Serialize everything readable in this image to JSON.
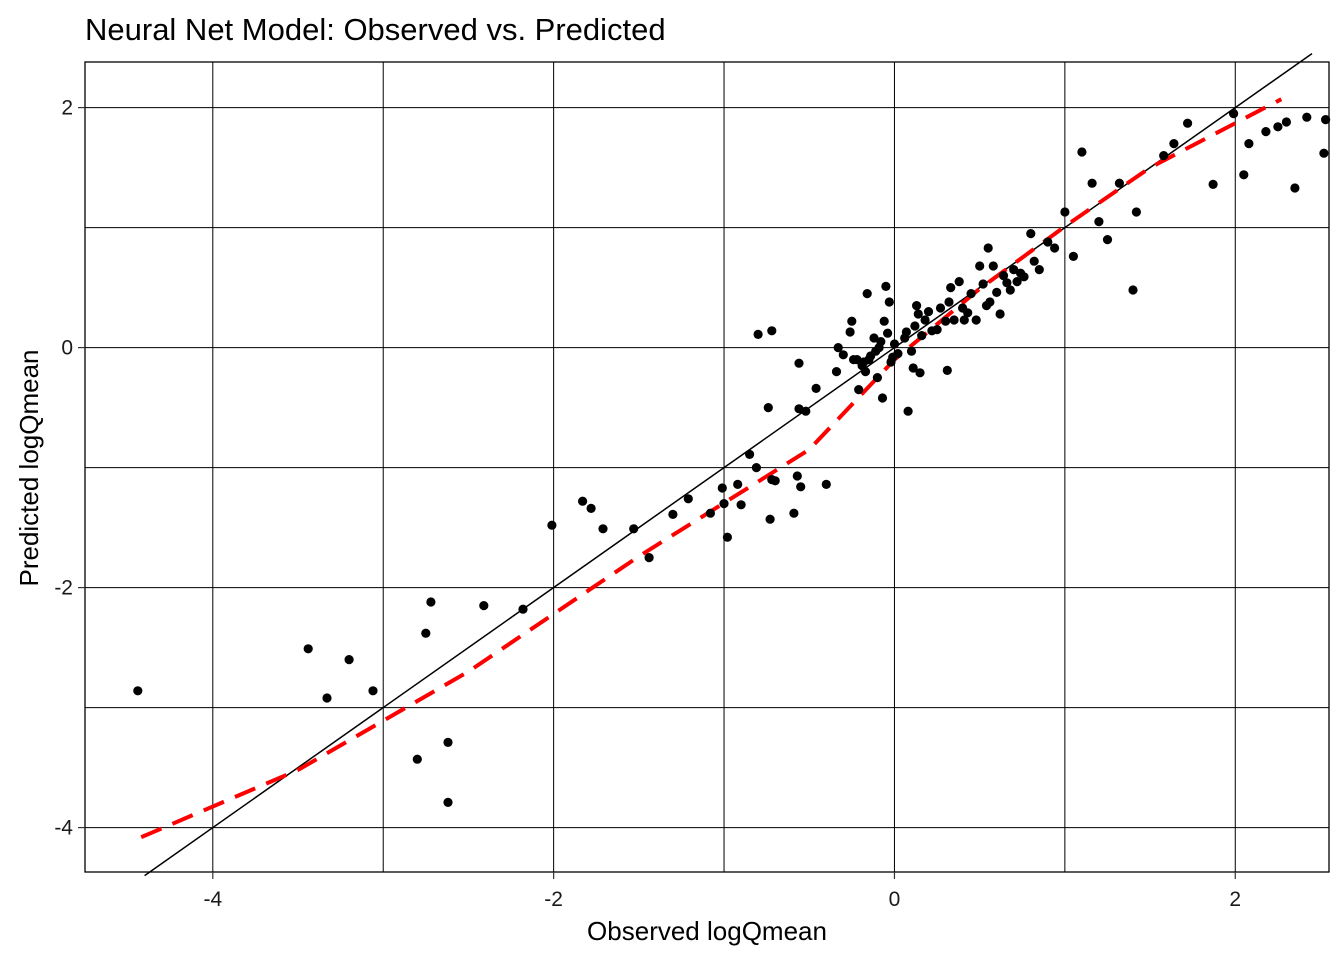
{
  "chart_data": {
    "type": "scatter",
    "title": "Neural Net Model: Observed vs. Predicted",
    "xlabel": "Observed logQmean",
    "ylabel": "Predicted logQmean",
    "xlim": [
      -4.75,
      2.55
    ],
    "ylim": [
      -4.37,
      2.38
    ],
    "x_ticks": [
      -4,
      -2,
      0,
      2
    ],
    "y_ticks": [
      -4,
      -2,
      0,
      2
    ],
    "x_tick_labels": [
      "-4",
      "-2",
      "0",
      "2"
    ],
    "y_tick_labels": [
      "-4",
      "-2",
      "0",
      "2"
    ],
    "grid": true,
    "legend": "none",
    "colors": {
      "points": "#000000",
      "identity_line": "#000000",
      "fit_line": "#ff0000",
      "grid": "#000000",
      "background": "#ffffff"
    },
    "series": [
      {
        "type": "scatter",
        "points": [
          [
            -4.44,
            -2.86
          ],
          [
            -3.44,
            -2.51
          ],
          [
            -3.33,
            -2.92
          ],
          [
            -3.2,
            -2.6
          ],
          [
            -3.06,
            -2.86
          ],
          [
            -2.8,
            -3.43
          ],
          [
            -2.75,
            -2.38
          ],
          [
            -2.72,
            -2.12
          ],
          [
            -2.62,
            -3.29
          ],
          [
            -2.62,
            -3.79
          ],
          [
            -2.41,
            -2.15
          ],
          [
            -2.18,
            -2.18
          ],
          [
            -2.01,
            -1.48
          ],
          [
            -1.83,
            -1.28
          ],
          [
            -1.78,
            -1.34
          ],
          [
            -1.71,
            -1.51
          ],
          [
            -1.53,
            -1.51
          ],
          [
            -1.44,
            -1.75
          ],
          [
            -1.3,
            -1.39
          ],
          [
            -1.21,
            -1.26
          ],
          [
            -1.08,
            -1.38
          ],
          [
            -1.01,
            -1.17
          ],
          [
            -1.0,
            -1.3
          ],
          [
            -0.98,
            -1.58
          ],
          [
            -0.92,
            -1.14
          ],
          [
            -0.9,
            -1.31
          ],
          [
            -0.85,
            -0.89
          ],
          [
            -0.81,
            -1.0
          ],
          [
            -0.8,
            0.11
          ],
          [
            -0.74,
            -0.5
          ],
          [
            -0.72,
            0.14
          ],
          [
            -0.73,
            -1.43
          ],
          [
            -0.72,
            -1.1
          ],
          [
            -0.7,
            -1.11
          ],
          [
            -0.59,
            -1.38
          ],
          [
            -0.57,
            -1.07
          ],
          [
            -0.56,
            -0.13
          ],
          [
            -0.56,
            -0.51
          ],
          [
            -0.55,
            -1.16
          ],
          [
            -0.52,
            -0.53
          ],
          [
            -0.46,
            -0.34
          ],
          [
            -0.4,
            -1.14
          ],
          [
            -0.34,
            -0.2
          ],
          [
            -0.33,
            0.0
          ],
          [
            -0.3,
            -0.06
          ],
          [
            -0.26,
            0.13
          ],
          [
            -0.25,
            0.22
          ],
          [
            -0.24,
            -0.1
          ],
          [
            -0.22,
            -0.1
          ],
          [
            -0.21,
            -0.35
          ],
          [
            -0.19,
            -0.15
          ],
          [
            -0.18,
            -0.12
          ],
          [
            -0.17,
            -0.2
          ],
          [
            -0.16,
            0.45
          ],
          [
            -0.15,
            -0.1
          ],
          [
            -0.14,
            -0.07
          ],
          [
            -0.12,
            0.08
          ],
          [
            -0.11,
            -0.03
          ],
          [
            -0.1,
            -0.25
          ],
          [
            -0.09,
            0.0
          ],
          [
            -0.08,
            0.05
          ],
          [
            -0.07,
            -0.42
          ],
          [
            -0.06,
            0.22
          ],
          [
            -0.05,
            0.51
          ],
          [
            -0.04,
            0.12
          ],
          [
            -0.03,
            0.38
          ],
          [
            -0.02,
            -0.12
          ],
          [
            -0.01,
            -0.08
          ],
          [
            0.0,
            0.03
          ],
          [
            0.02,
            -0.05
          ],
          [
            0.06,
            0.08
          ],
          [
            0.07,
            0.13
          ],
          [
            0.08,
            -0.53
          ],
          [
            0.1,
            -0.03
          ],
          [
            0.11,
            -0.17
          ],
          [
            0.12,
            0.18
          ],
          [
            0.13,
            0.35
          ],
          [
            0.14,
            0.28
          ],
          [
            0.15,
            -0.21
          ],
          [
            0.16,
            0.1
          ],
          [
            0.18,
            0.23
          ],
          [
            0.2,
            0.3
          ],
          [
            0.22,
            0.14
          ],
          [
            0.25,
            0.15
          ],
          [
            0.27,
            0.33
          ],
          [
            0.3,
            0.22
          ],
          [
            0.31,
            -0.19
          ],
          [
            0.32,
            0.38
          ],
          [
            0.33,
            0.5
          ],
          [
            0.35,
            0.23
          ],
          [
            0.38,
            0.55
          ],
          [
            0.4,
            0.33
          ],
          [
            0.41,
            0.23
          ],
          [
            0.43,
            0.29
          ],
          [
            0.45,
            0.45
          ],
          [
            0.48,
            0.23
          ],
          [
            0.5,
            0.68
          ],
          [
            0.52,
            0.53
          ],
          [
            0.54,
            0.35
          ],
          [
            0.55,
            0.83
          ],
          [
            0.56,
            0.38
          ],
          [
            0.58,
            0.68
          ],
          [
            0.6,
            0.46
          ],
          [
            0.62,
            0.28
          ],
          [
            0.64,
            0.6
          ],
          [
            0.66,
            0.54
          ],
          [
            0.68,
            0.48
          ],
          [
            0.7,
            0.65
          ],
          [
            0.72,
            0.55
          ],
          [
            0.74,
            0.62
          ],
          [
            0.76,
            0.59
          ],
          [
            0.8,
            0.95
          ],
          [
            0.82,
            0.72
          ],
          [
            0.85,
            0.65
          ],
          [
            0.9,
            0.88
          ],
          [
            0.94,
            0.83
          ],
          [
            1.0,
            1.13
          ],
          [
            1.05,
            0.76
          ],
          [
            1.1,
            1.63
          ],
          [
            1.16,
            1.37
          ],
          [
            1.2,
            1.05
          ],
          [
            1.25,
            0.9
          ],
          [
            1.32,
            1.37
          ],
          [
            1.4,
            0.48
          ],
          [
            1.42,
            1.13
          ],
          [
            1.58,
            1.6
          ],
          [
            1.64,
            1.7
          ],
          [
            1.72,
            1.87
          ],
          [
            1.87,
            1.36
          ],
          [
            1.99,
            1.95
          ],
          [
            2.05,
            1.44
          ],
          [
            2.08,
            1.7
          ],
          [
            2.18,
            1.8
          ],
          [
            2.25,
            1.84
          ],
          [
            2.3,
            1.88
          ],
          [
            2.35,
            1.33
          ],
          [
            2.42,
            1.92
          ],
          [
            2.53,
            1.9
          ],
          [
            2.52,
            1.62
          ]
        ]
      },
      {
        "type": "line",
        "style": "solid",
        "color": "#000000",
        "x": [
          -4.4,
          2.45
        ],
        "y": [
          -4.4,
          2.45
        ]
      },
      {
        "type": "line",
        "style": "dashed",
        "color": "#ff0000",
        "x": [
          -4.42,
          -3.5,
          -2.5,
          -1.5,
          -0.5,
          0.0,
          0.5,
          1.0,
          1.5,
          2.27
        ],
        "y": [
          -4.08,
          -3.52,
          -2.7,
          -1.74,
          -0.85,
          -0.1,
          0.49,
          1.01,
          1.5,
          2.07
        ]
      }
    ]
  }
}
